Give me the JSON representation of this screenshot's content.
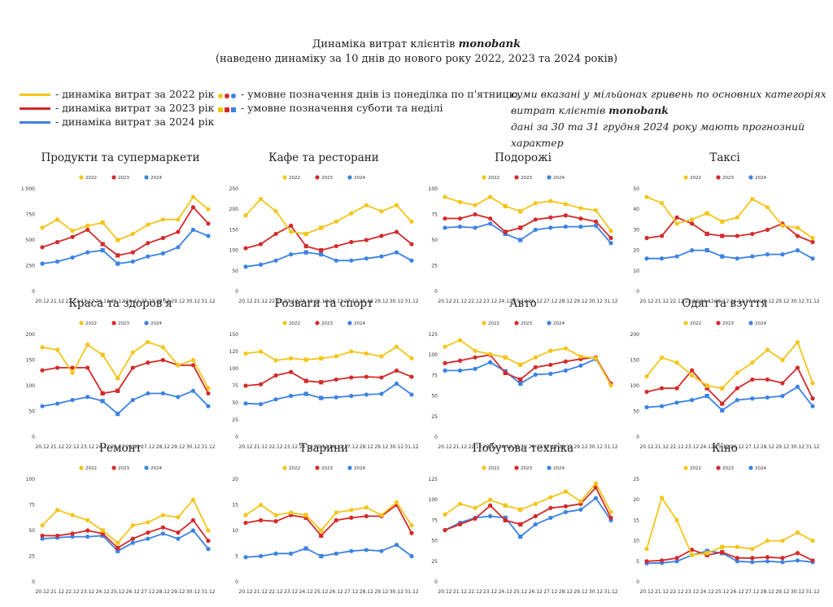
{
  "header": {
    "title_prefix": "Динаміка витрат клієнтів",
    "brand": "monobank",
    "subtitle": "(наведено динаміку за 10 днів до нового року 2022, 2023 та 2024 років)"
  },
  "legend": {
    "l2022": "- динаміка витрат за 2022 рік",
    "l2023": "- динаміка витрат за 2023 рік",
    "l2024": "- динаміка витрат за 2024 рік",
    "weekday": "- умовне позначення днів із понеділка по п'ятницю",
    "weekend": "- умовне позначення суботи та неділі"
  },
  "note": {
    "line1": "суми вказані у мільйонах гривень по основних категоріях",
    "line2_prefix": "витрат клієнтів",
    "line2_brand": "monobank",
    "line3": "дані за 30 та 31 грудня 2024 року мають прогнозний характер"
  },
  "colors": {
    "2022": "#f5c518",
    "2023": "#d42a2a",
    "2024": "#3b82e6"
  },
  "chart_data": [
    {
      "type": "line",
      "title": "Продукти та супермаркети",
      "ylim": [
        0,
        1000
      ],
      "yticks": [
        "0",
        "250",
        "500",
        "750",
        "1 000"
      ],
      "categories": [
        "20.12",
        "21.12",
        "22.12",
        "23.12",
        "24.12",
        "25.12",
        "26.12",
        "27.12",
        "28.12",
        "29.12",
        "30.12",
        "31.12"
      ],
      "series": [
        {
          "name": "2022",
          "values": [
            620,
            700,
            590,
            640,
            670,
            500,
            560,
            650,
            700,
            700,
            920,
            800
          ]
        },
        {
          "name": "2023",
          "values": [
            430,
            480,
            530,
            600,
            460,
            350,
            380,
            470,
            520,
            580,
            820,
            660
          ]
        },
        {
          "name": "2024",
          "values": [
            270,
            290,
            330,
            380,
            400,
            270,
            290,
            340,
            370,
            430,
            600,
            540
          ]
        }
      ]
    },
    {
      "type": "line",
      "title": "Кафе та ресторани",
      "ylim": [
        0,
        250
      ],
      "yticks": [
        "0",
        "50",
        "100",
        "150",
        "200",
        "250"
      ],
      "categories": [
        "20.12",
        "21.12",
        "22.12",
        "23.12",
        "24.12",
        "25.12",
        "26.12",
        "27.12",
        "28.12",
        "29.12",
        "30.12",
        "31.12"
      ],
      "series": [
        {
          "name": "2022",
          "values": [
            185,
            225,
            195,
            145,
            140,
            155,
            170,
            190,
            210,
            195,
            210,
            170
          ]
        },
        {
          "name": "2023",
          "values": [
            105,
            115,
            140,
            160,
            110,
            100,
            110,
            120,
            125,
            135,
            145,
            115
          ]
        },
        {
          "name": "2024",
          "values": [
            60,
            65,
            75,
            90,
            95,
            90,
            75,
            75,
            80,
            85,
            95,
            75
          ]
        }
      ]
    },
    {
      "type": "line",
      "title": "Подорожі",
      "ylim": [
        0,
        100
      ],
      "yticks": [
        "0",
        "25",
        "50",
        "75",
        "100"
      ],
      "categories": [
        "20.12",
        "21.12",
        "22.12",
        "23.12",
        "24.12",
        "25.12",
        "26.12",
        "27.12",
        "28.12",
        "29.12",
        "30.12",
        "31.12"
      ],
      "series": [
        {
          "name": "2022",
          "values": [
            92,
            87,
            84,
            92,
            83,
            78,
            86,
            88,
            85,
            81,
            79,
            59
          ]
        },
        {
          "name": "2023",
          "values": [
            71,
            71,
            75,
            71,
            58,
            62,
            70,
            72,
            74,
            71,
            68,
            52
          ]
        },
        {
          "name": "2024",
          "values": [
            62,
            63,
            62,
            66,
            56,
            50,
            60,
            62,
            63,
            63,
            64,
            47
          ]
        }
      ]
    },
    {
      "type": "line",
      "title": "Таксі",
      "ylim": [
        0,
        50
      ],
      "yticks": [
        "0",
        "10",
        "20",
        "30",
        "40",
        "50"
      ],
      "categories": [
        "20.12",
        "21.12",
        "22.12",
        "23.12",
        "24.12",
        "25.12",
        "26.12",
        "27.12",
        "28.12",
        "29.12",
        "30.12",
        "31.12"
      ],
      "series": [
        {
          "name": "2022",
          "values": [
            46,
            43,
            33,
            35,
            38,
            34,
            36,
            45,
            41,
            32,
            31,
            26
          ]
        },
        {
          "name": "2023",
          "values": [
            26,
            27,
            36,
            33,
            28,
            27,
            27,
            28,
            30,
            33,
            27,
            24
          ]
        },
        {
          "name": "2024",
          "values": [
            16,
            16,
            17,
            20,
            20,
            17,
            16,
            17,
            18,
            18,
            20,
            16
          ]
        }
      ]
    },
    {
      "type": "line",
      "title": "Краса та здоров'я",
      "ylim": [
        0,
        200
      ],
      "yticks": [
        "0",
        "50",
        "100",
        "150",
        "200"
      ],
      "categories": [
        "20.12",
        "21.12",
        "22.12",
        "23.12",
        "24.12",
        "25.12",
        "26.12",
        "27.12",
        "28.12",
        "29.12",
        "30.12",
        "31.12"
      ],
      "series": [
        {
          "name": "2022",
          "values": [
            175,
            170,
            125,
            180,
            160,
            115,
            165,
            185,
            175,
            140,
            150,
            95
          ]
        },
        {
          "name": "2023",
          "values": [
            130,
            135,
            135,
            135,
            85,
            90,
            135,
            145,
            150,
            140,
            140,
            85
          ]
        },
        {
          "name": "2024",
          "values": [
            60,
            65,
            72,
            78,
            70,
            45,
            72,
            85,
            85,
            78,
            90,
            60
          ]
        }
      ]
    },
    {
      "type": "line",
      "title": "Розваги та спорт",
      "ylim": [
        0,
        150
      ],
      "yticks": [
        "0",
        "25",
        "50",
        "75",
        "100",
        "125",
        "150"
      ],
      "categories": [
        "20.12",
        "21.12",
        "22.12",
        "23.12",
        "24.12",
        "25.12",
        "26.12",
        "27.12",
        "28.12",
        "29.12",
        "30.12",
        "31.12"
      ],
      "series": [
        {
          "name": "2022",
          "values": [
            122,
            125,
            112,
            115,
            113,
            115,
            118,
            125,
            122,
            118,
            132,
            115
          ]
        },
        {
          "name": "2023",
          "values": [
            75,
            77,
            90,
            95,
            82,
            80,
            84,
            87,
            88,
            87,
            97,
            88
          ]
        },
        {
          "name": "2024",
          "values": [
            49,
            48,
            55,
            60,
            63,
            57,
            58,
            60,
            62,
            63,
            78,
            62
          ]
        }
      ]
    },
    {
      "type": "line",
      "title": "Авто",
      "ylim": [
        0,
        125
      ],
      "yticks": [
        "0",
        "25",
        "50",
        "75",
        "100",
        "125"
      ],
      "categories": [
        "20.12",
        "21.12",
        "22.12",
        "23.12",
        "24.12",
        "25.12",
        "26.12",
        "27.12",
        "28.12",
        "29.12",
        "30.12",
        "31.12"
      ],
      "series": [
        {
          "name": "2022",
          "values": [
            110,
            118,
            105,
            101,
            97,
            88,
            97,
            105,
            108,
            98,
            96,
            63
          ]
        },
        {
          "name": "2023",
          "values": [
            90,
            93,
            97,
            100,
            78,
            70,
            85,
            88,
            92,
            95,
            97,
            65
          ]
        },
        {
          "name": "2024",
          "values": [
            81,
            81,
            83,
            91,
            80,
            65,
            76,
            77,
            81,
            87,
            95,
            64
          ]
        }
      ]
    },
    {
      "type": "line",
      "title": "Одяг та взуття",
      "ylim": [
        0,
        200
      ],
      "yticks": [
        "0",
        "50",
        "100",
        "150",
        "200"
      ],
      "categories": [
        "20.12",
        "21.12",
        "22.12",
        "23.12",
        "24.12",
        "25.12",
        "26.12",
        "27.12",
        "28.12",
        "29.12",
        "30.12",
        "31.12"
      ],
      "series": [
        {
          "name": "2022",
          "values": [
            118,
            155,
            145,
            120,
            100,
            95,
            125,
            145,
            170,
            150,
            185,
            105
          ]
        },
        {
          "name": "2023",
          "values": [
            88,
            95,
            95,
            130,
            95,
            65,
            95,
            112,
            112,
            105,
            135,
            75
          ]
        },
        {
          "name": "2024",
          "values": [
            58,
            60,
            67,
            72,
            80,
            52,
            72,
            75,
            77,
            80,
            98,
            60
          ]
        }
      ]
    },
    {
      "type": "line",
      "title": "Ремонт",
      "ylim": [
        0,
        100
      ],
      "yticks": [
        "0",
        "25",
        "50",
        "75",
        "100"
      ],
      "categories": [
        "20.12",
        "21.12",
        "22.12",
        "23.12",
        "24.12",
        "25.12",
        "26.12",
        "27.12",
        "28.12",
        "29.12",
        "30.12",
        "31.12"
      ],
      "series": [
        {
          "name": "2022",
          "values": [
            55,
            70,
            65,
            60,
            50,
            38,
            55,
            58,
            65,
            63,
            80,
            50
          ]
        },
        {
          "name": "2023",
          "values": [
            45,
            45,
            47,
            50,
            47,
            33,
            42,
            48,
            53,
            48,
            60,
            40
          ]
        },
        {
          "name": "2024",
          "values": [
            42,
            43,
            44,
            44,
            45,
            30,
            38,
            42,
            47,
            42,
            50,
            32
          ]
        }
      ]
    },
    {
      "type": "line",
      "title": "Тварини",
      "ylim": [
        0,
        20
      ],
      "yticks": [
        "0",
        "5",
        "10",
        "15",
        "20"
      ],
      "categories": [
        "20.12",
        "21.12",
        "22.12",
        "23.12",
        "24.12",
        "25.12",
        "26.12",
        "27.12",
        "28.12",
        "29.12",
        "30.12",
        "31.12"
      ],
      "series": [
        {
          "name": "2022",
          "values": [
            13,
            15,
            13,
            13.5,
            13,
            10,
            13.5,
            14,
            14.5,
            13,
            15.5,
            11
          ]
        },
        {
          "name": "2023",
          "values": [
            11.5,
            12,
            11.8,
            13,
            12.5,
            9,
            12,
            12.5,
            12.8,
            12.8,
            15,
            9.5
          ]
        },
        {
          "name": "2024",
          "values": [
            4.8,
            5,
            5.5,
            5.5,
            6.5,
            5,
            5.5,
            6,
            6.2,
            6,
            7.2,
            5
          ]
        }
      ]
    },
    {
      "type": "line",
      "title": "Побутова техніка",
      "ylim": [
        0,
        125
      ],
      "yticks": [
        "0",
        "25",
        "50",
        "75",
        "100",
        "125"
      ],
      "categories": [
        "20.12",
        "21.12",
        "22.12",
        "23.12",
        "24.12",
        "25.12",
        "26.12",
        "27.12",
        "28.12",
        "29.12",
        "30.12",
        "31.12"
      ],
      "series": [
        {
          "name": "2022",
          "values": [
            82,
            95,
            90,
            100,
            93,
            88,
            95,
            103,
            110,
            98,
            120,
            85
          ]
        },
        {
          "name": "2023",
          "values": [
            63,
            70,
            77,
            93,
            75,
            70,
            80,
            90,
            92,
            95,
            115,
            78
          ]
        },
        {
          "name": "2024",
          "values": [
            63,
            72,
            78,
            80,
            78,
            55,
            70,
            78,
            85,
            88,
            102,
            75
          ]
        }
      ]
    },
    {
      "type": "line",
      "title": "Кіно",
      "ylim": [
        0,
        25
      ],
      "yticks": [
        "0",
        "5",
        "10",
        "15",
        "20",
        "25"
      ],
      "categories": [
        "20.12",
        "21.12",
        "22.12",
        "23.12",
        "24.12",
        "25.12",
        "26.12",
        "27.12",
        "28.12",
        "29.12",
        "30.12",
        "31.12"
      ],
      "series": [
        {
          "name": "2022",
          "values": [
            8,
            20.5,
            15,
            6.5,
            7,
            8.5,
            8.5,
            8,
            10,
            10,
            12,
            10
          ]
        },
        {
          "name": "2023",
          "values": [
            5,
            5.2,
            5.8,
            7.8,
            6.5,
            7.2,
            5.8,
            5.8,
            6,
            5.8,
            7,
            5.2
          ]
        },
        {
          "name": "2024",
          "values": [
            4.5,
            4.6,
            5,
            6.5,
            7.5,
            7,
            5,
            4.8,
            5,
            4.8,
            5.2,
            4.8
          ]
        }
      ]
    }
  ]
}
